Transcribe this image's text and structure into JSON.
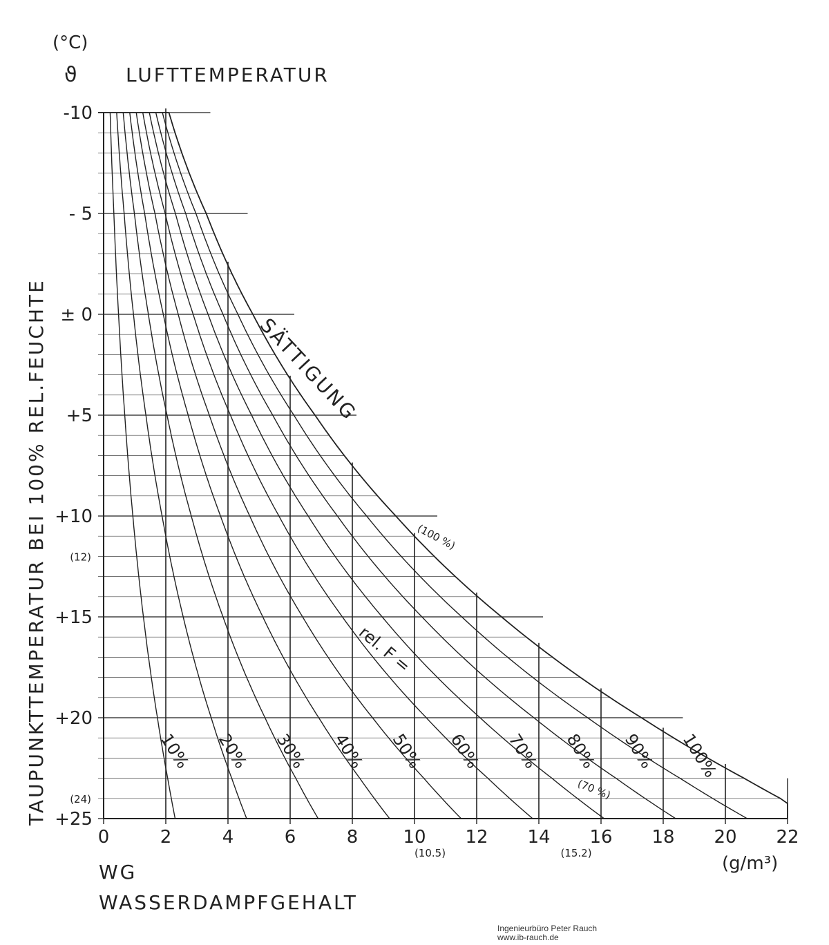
{
  "chart_data": {
    "type": "line",
    "title_unit": "(°C)",
    "title_symbol": "ϑ",
    "title": "LUFTTEMPERATUR",
    "ylabel": "TAUPUNKTTEMPERATUR BEI 100% REL.FEUCHTE",
    "xlabel_abbr": "WG",
    "xlabel": "WASSERDAMPFGEHALT",
    "xunit": "(g/m³)",
    "xlim": [
      0,
      22
    ],
    "ylim": [
      -10,
      25
    ],
    "y_inverted": true,
    "x_ticks": [
      "0",
      "2",
      "4",
      "6",
      "8",
      "10",
      "12",
      "14",
      "16",
      "18",
      "20",
      "22"
    ],
    "y_ticks": [
      {
        "value": -10,
        "label": "-10"
      },
      {
        "value": -5,
        "label": "- 5"
      },
      {
        "value": 0,
        "label": "± 0"
      },
      {
        "value": 5,
        "label": "+5"
      },
      {
        "value": 10,
        "label": "+10"
      },
      {
        "value": 12,
        "label": "(12)"
      },
      {
        "value": 15,
        "label": "+15"
      },
      {
        "value": 20,
        "label": "+20"
      },
      {
        "value": 24,
        "label": "(24)"
      },
      {
        "value": 25,
        "label": "+25"
      }
    ],
    "x_annotations": [
      {
        "x": 10.5,
        "label": "(10.5)"
      },
      {
        "x": 15.2,
        "label": "(15.2)"
      }
    ],
    "saturation": {
      "name": "SÄTTIGUNG",
      "points": [
        [
          2.1,
          -10
        ],
        [
          3.3,
          -5
        ],
        [
          4.8,
          0
        ],
        [
          6.8,
          5
        ],
        [
          9.4,
          10
        ],
        [
          12.8,
          15
        ],
        [
          17.3,
          20
        ],
        [
          20.6,
          23
        ],
        [
          23.0,
          25
        ]
      ]
    },
    "series": [
      {
        "name": "10%",
        "scale": 0.1
      },
      {
        "name": "20%",
        "scale": 0.2
      },
      {
        "name": "30%",
        "scale": 0.3
      },
      {
        "name": "40%",
        "scale": 0.4
      },
      {
        "name": "50%",
        "scale": 0.5
      },
      {
        "name": "60%",
        "scale": 0.6
      },
      {
        "name": "70%",
        "scale": 0.7
      },
      {
        "name": "80%",
        "scale": 0.8
      },
      {
        "name": "90%",
        "scale": 0.9
      },
      {
        "name": "100%",
        "scale": 1.0
      }
    ],
    "curve_label_prefix": "rel. F =",
    "inline_annotations": [
      {
        "text": "(100 %)"
      },
      {
        "text": "(70 %)"
      }
    ],
    "grid": true
  },
  "credit": {
    "line1": "Ingenieurbüro Peter Rauch",
    "line2": "www.ib-rauch.de"
  }
}
